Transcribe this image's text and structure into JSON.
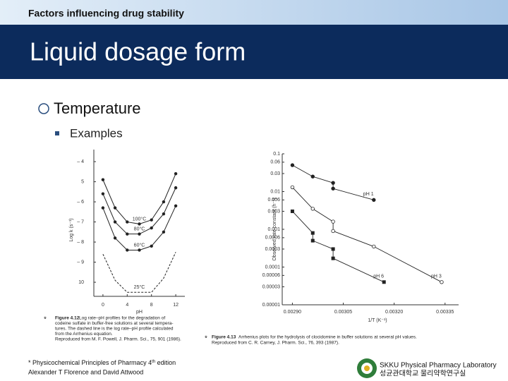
{
  "header": {
    "subtitle": "Factors influencing drug stability",
    "title": "Liquid dosage form"
  },
  "bullets": {
    "level1": "Temperature",
    "level2": "Examples"
  },
  "chart_data": [
    {
      "type": "line",
      "xlabel": "pH",
      "ylabel": "Log k (s⁻¹)",
      "x": [
        0,
        2,
        4,
        6,
        8,
        10,
        12
      ],
      "xlim": [
        -1.5,
        13.5
      ],
      "xticks": [
        0,
        4,
        8,
        12
      ],
      "ylim": [
        -10.7,
        -3.4
      ],
      "yticks": [
        {
          "value": -4,
          "label": "– 4"
        },
        {
          "value": -5,
          "label": "5"
        },
        {
          "value": -6,
          "label": "– 6"
        },
        {
          "value": -7,
          "label": "– 7"
        },
        {
          "value": -8,
          "label": "– 8"
        },
        {
          "value": -9,
          "label": "– 9"
        },
        {
          "value": -10,
          "label": "10"
        }
      ],
      "series": [
        {
          "name": "100°C",
          "color": "#222222",
          "dashed": false,
          "values": [
            -4.9,
            -6.3,
            -7.0,
            -7.1,
            -6.9,
            -6.0,
            -4.6
          ]
        },
        {
          "name": "80°C",
          "color": "#222222",
          "dashed": false,
          "values": [
            -5.6,
            -7.0,
            -7.6,
            -7.6,
            -7.3,
            -6.6,
            -5.3
          ]
        },
        {
          "name": "60°C",
          "color": "#222222",
          "dashed": false,
          "values": [
            -6.3,
            -7.8,
            -8.4,
            -8.4,
            -8.2,
            -7.5,
            -6.2
          ]
        },
        {
          "name": "25°C",
          "color": "#222222",
          "dashed": true,
          "values": [
            -8.6,
            -9.9,
            -10.5,
            -10.5,
            -10.5,
            -9.8,
            -8.5
          ]
        }
      ],
      "marker": "*",
      "caption": [
        "Figure 4.12",
        "Log rate–pH profiles for the degradation of",
        "codeine sulfate in buffer-free solutions at several tempera-",
        "tures. The dashed line is the log rate–pH profile calculated",
        "from the Arrhenius equation.",
        "Reproduced from M. F. Powell, J. Pharm. Sci., 75, 901 (1986)."
      ]
    },
    {
      "type": "scatter",
      "xlabel": "1/T (K⁻¹)",
      "ylabel": "Observed rate constant (h⁻¹)",
      "log_y": true,
      "xlim": [
        0.00287,
        0.00339
      ],
      "xticks": [
        {
          "value": 0.0029,
          "label": "0.00290"
        },
        {
          "value": 0.00305,
          "label": "0.00305"
        },
        {
          "value": 0.0032,
          "label": "0.00320"
        },
        {
          "value": 0.00335,
          "label": "0.00335"
        }
      ],
      "ylim": [
        1e-05,
        0.1
      ],
      "yticks": [
        0.1,
        0.06,
        0.03,
        0.01,
        0.006,
        0.003,
        0.001,
        0.0006,
        0.0003,
        0.0001,
        6e-05,
        3e-05,
        1e-05
      ],
      "series": [
        {
          "name": "pH 1",
          "color": "#222222",
          "marker": "circle-filled",
          "x": [
            0.0029,
            0.00296,
            0.00302,
            0.00302,
            0.00314
          ],
          "values": [
            0.05,
            0.025,
            0.017,
            0.012,
            0.006
          ]
        },
        {
          "name": "pH 3",
          "color": "#222222",
          "marker": "circle-open",
          "x": [
            0.0029,
            0.00296,
            0.00302,
            0.00302,
            0.00314,
            0.00334
          ],
          "values": [
            0.013,
            0.0035,
            0.0016,
            0.0009,
            0.00035,
            4e-05
          ]
        },
        {
          "name": "pH 6",
          "color": "#222222",
          "marker": "square",
          "x": [
            0.0029,
            0.00296,
            0.00296,
            0.00302,
            0.00302,
            0.00317
          ],
          "values": [
            0.003,
            0.0008,
            0.0005,
            0.0003,
            0.00017,
            4e-05
          ]
        }
      ],
      "marker": "*",
      "caption": [
        "Figure 4.13",
        "Arrhenius plots for the hydrolysis of clocidomine in buffer solutions at several pH values.",
        "Reproduced from C. R. Carney, J. Pharm. Sci., 76, 393 (1987)."
      ]
    }
  ],
  "footer": {
    "reference": "* Physicochemical Principles of Pharmacy 4",
    "reference_sup": "th",
    "reference_end": " edition",
    "authors": "Alexander T Florence and David Attwood",
    "lab_en": "SKKU Physical Pharmacy Laboratory",
    "lab_kr": "성균관대학교 물리약학연구실"
  }
}
